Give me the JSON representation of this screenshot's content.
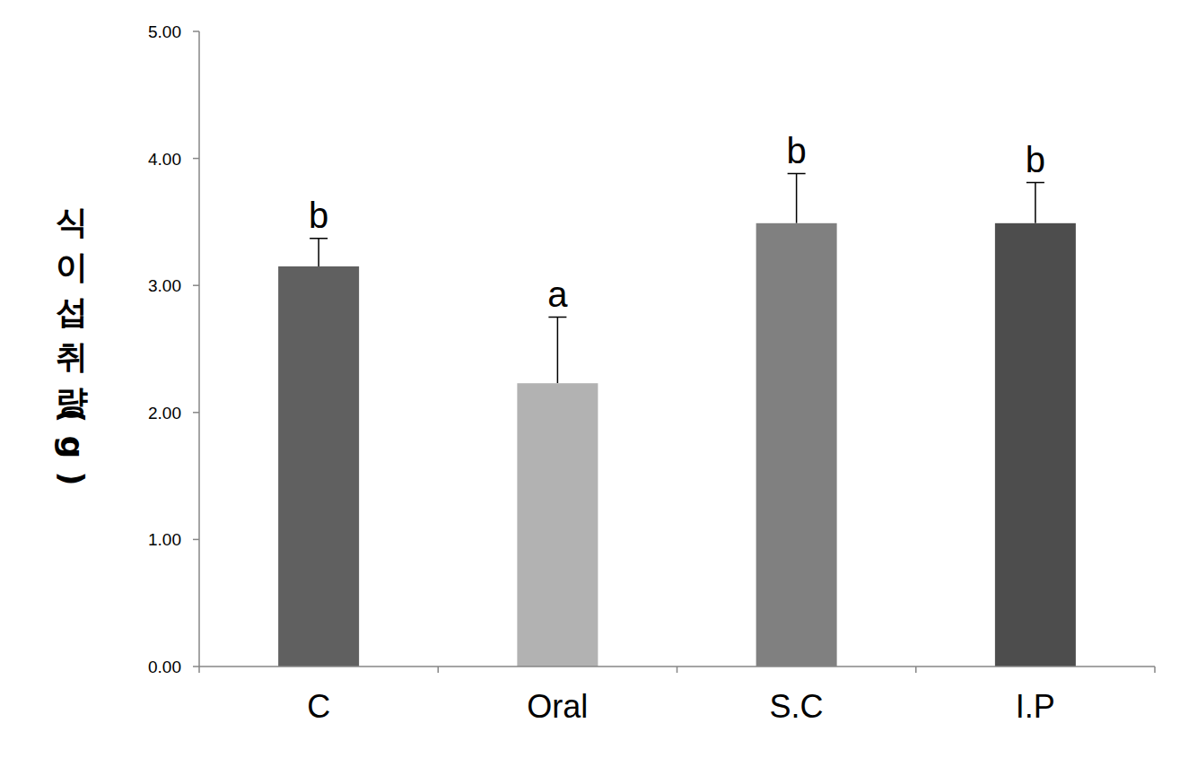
{
  "chart_data": {
    "type": "bar",
    "y_label": "식이섭취량(g)",
    "categories": [
      "C",
      "Oral",
      "S.C",
      "I.P"
    ],
    "values": [
      3.15,
      2.23,
      3.49,
      3.49
    ],
    "errors": [
      0.22,
      0.52,
      0.39,
      0.32
    ],
    "annotations": [
      "b",
      "a",
      "b",
      "b"
    ],
    "colors": [
      "#606060",
      "#b2b2b2",
      "#808080",
      "#4d4d4d"
    ],
    "ylim": [
      0,
      5
    ],
    "yticks": [
      {
        "value": 0,
        "label": "0.00"
      },
      {
        "value": 1,
        "label": "1.00"
      },
      {
        "value": 2,
        "label": "2.00"
      },
      {
        "value": 3,
        "label": "3.00"
      },
      {
        "value": 4,
        "label": "4.00"
      },
      {
        "value": 5,
        "label": "5.00"
      }
    ],
    "grid": false
  }
}
